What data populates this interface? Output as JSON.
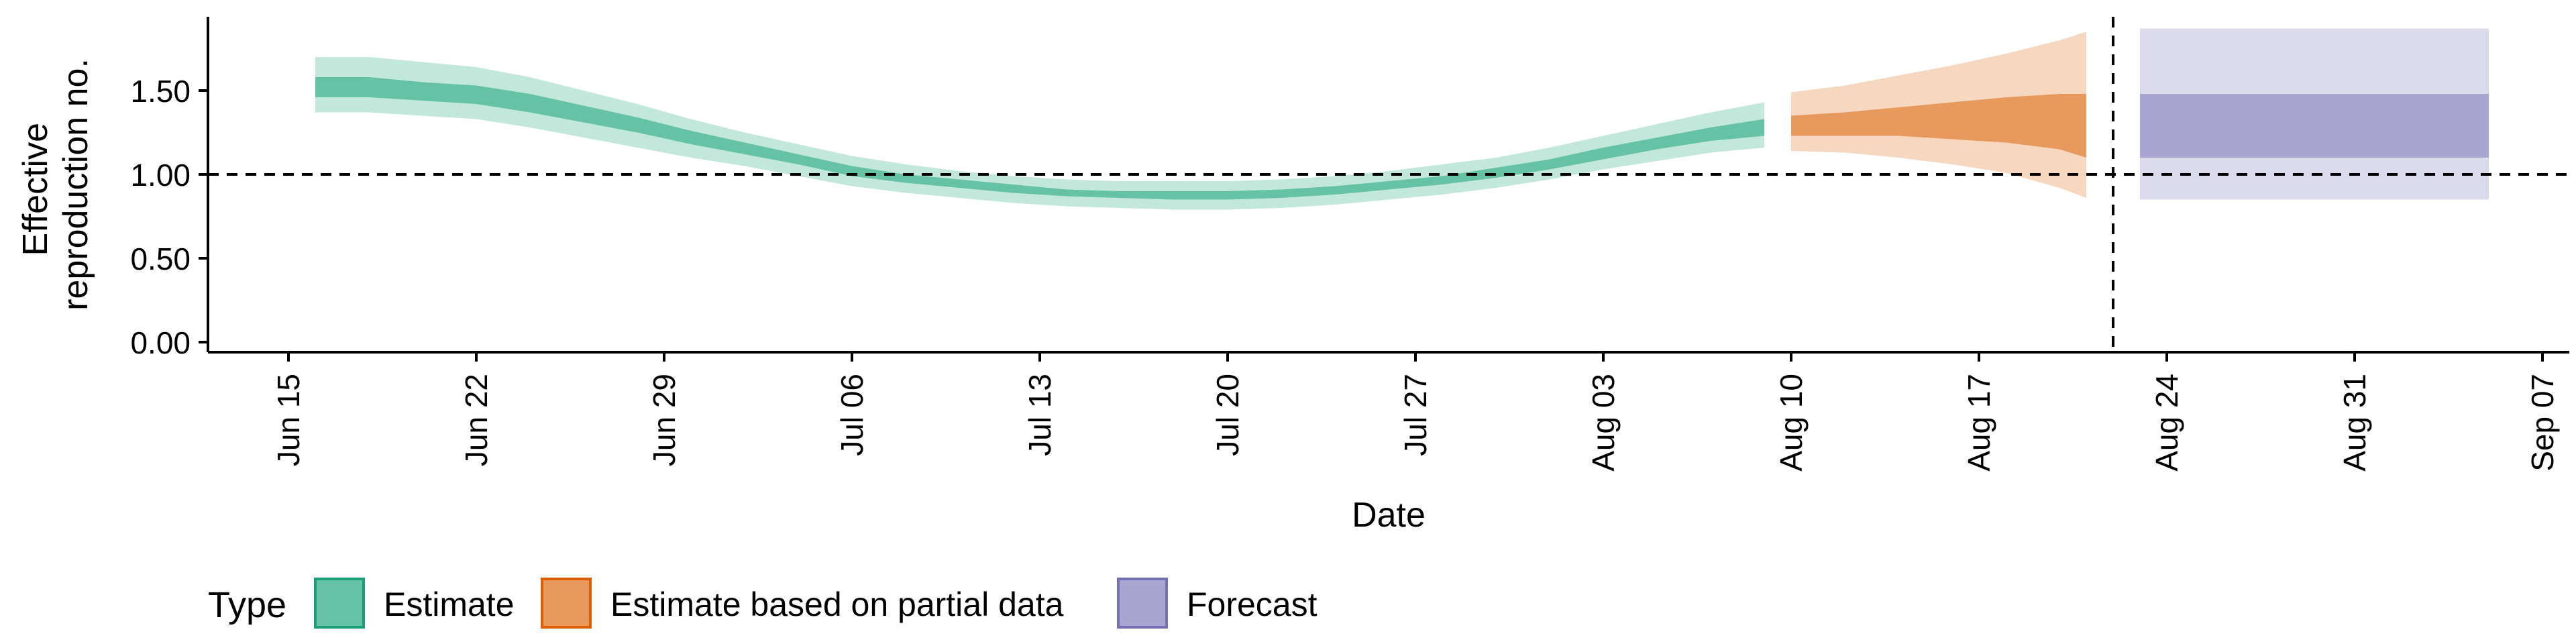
{
  "chart_data": {
    "type": "area",
    "xlabel": "Date",
    "ylabel": "Effective reproduction no.",
    "ylabel_lines": [
      "Effective",
      "reproduction no."
    ],
    "ylim": [
      -0.06,
      1.94
    ],
    "yticks": [
      0.0,
      0.5,
      1.0,
      1.5
    ],
    "ytick_labels": [
      "0.00",
      "0.50",
      "1.00",
      "1.50"
    ],
    "xlim": [
      "2020-06-12",
      "2020-09-08"
    ],
    "xticks": [
      "2020-06-15",
      "2020-06-22",
      "2020-06-29",
      "2020-07-06",
      "2020-07-13",
      "2020-07-20",
      "2020-07-27",
      "2020-08-03",
      "2020-08-10",
      "2020-08-17",
      "2020-08-24",
      "2020-08-31",
      "2020-09-07"
    ],
    "xtick_labels": [
      "Jun 15",
      "Jun 22",
      "Jun 29",
      "Jul 06",
      "Jul 13",
      "Jul 20",
      "Jul 27",
      "Aug 03",
      "Aug 10",
      "Aug 17",
      "Aug 24",
      "Aug 31",
      "Sep 07"
    ],
    "reference_line_y": 1.0,
    "vertical_line_x": "2020-08-22",
    "grid": false,
    "legend": {
      "title": "Type",
      "position": "bottom-left",
      "items": [
        {
          "label": "Estimate",
          "fill": "#66c2a5",
          "stroke": "#1b9e77"
        },
        {
          "label": "Estimate based on partial data",
          "fill": "#e89a5e",
          "stroke": "#d95f02"
        },
        {
          "label": "Forecast",
          "fill": "#a8a5d0",
          "stroke": "#7570b3"
        }
      ]
    },
    "series": [
      {
        "name": "Estimate",
        "color": "#66c2a5",
        "points": [
          {
            "x": "2020-06-16",
            "lo90": 1.37,
            "lo50": 1.46,
            "hi50": 1.58,
            "hi90": 1.7
          },
          {
            "x": "2020-06-18",
            "lo90": 1.37,
            "lo50": 1.46,
            "hi50": 1.58,
            "hi90": 1.7
          },
          {
            "x": "2020-06-20",
            "lo90": 1.35,
            "lo50": 1.44,
            "hi50": 1.55,
            "hi90": 1.67
          },
          {
            "x": "2020-06-22",
            "lo90": 1.33,
            "lo50": 1.42,
            "hi50": 1.53,
            "hi90": 1.64
          },
          {
            "x": "2020-06-24",
            "lo90": 1.28,
            "lo50": 1.37,
            "hi50": 1.48,
            "hi90": 1.58
          },
          {
            "x": "2020-06-26",
            "lo90": 1.22,
            "lo50": 1.31,
            "hi50": 1.41,
            "hi90": 1.5
          },
          {
            "x": "2020-06-28",
            "lo90": 1.16,
            "lo50": 1.25,
            "hi50": 1.34,
            "hi90": 1.42
          },
          {
            "x": "2020-06-30",
            "lo90": 1.1,
            "lo50": 1.18,
            "hi50": 1.26,
            "hi90": 1.33
          },
          {
            "x": "2020-07-02",
            "lo90": 1.05,
            "lo50": 1.12,
            "hi50": 1.19,
            "hi90": 1.25
          },
          {
            "x": "2020-07-04",
            "lo90": 0.99,
            "lo50": 1.06,
            "hi50": 1.12,
            "hi90": 1.18
          },
          {
            "x": "2020-07-06",
            "lo90": 0.93,
            "lo50": 0.99,
            "hi50": 1.05,
            "hi90": 1.11
          },
          {
            "x": "2020-07-08",
            "lo90": 0.89,
            "lo50": 0.95,
            "hi50": 1.0,
            "hi90": 1.06
          },
          {
            "x": "2020-07-10",
            "lo90": 0.86,
            "lo50": 0.92,
            "hi50": 0.97,
            "hi90": 1.02
          },
          {
            "x": "2020-07-12",
            "lo90": 0.83,
            "lo50": 0.89,
            "hi50": 0.94,
            "hi90": 0.99
          },
          {
            "x": "2020-07-14",
            "lo90": 0.81,
            "lo50": 0.87,
            "hi50": 0.91,
            "hi90": 0.97
          },
          {
            "x": "2020-07-16",
            "lo90": 0.8,
            "lo50": 0.86,
            "hi50": 0.9,
            "hi90": 0.96
          },
          {
            "x": "2020-07-18",
            "lo90": 0.79,
            "lo50": 0.85,
            "hi50": 0.9,
            "hi90": 0.96
          },
          {
            "x": "2020-07-20",
            "lo90": 0.79,
            "lo50": 0.85,
            "hi50": 0.9,
            "hi90": 0.96
          },
          {
            "x": "2020-07-22",
            "lo90": 0.8,
            "lo50": 0.86,
            "hi50": 0.91,
            "hi90": 0.97
          },
          {
            "x": "2020-07-24",
            "lo90": 0.82,
            "lo50": 0.88,
            "hi50": 0.93,
            "hi90": 0.99
          },
          {
            "x": "2020-07-26",
            "lo90": 0.85,
            "lo50": 0.91,
            "hi50": 0.96,
            "hi90": 1.02
          },
          {
            "x": "2020-07-28",
            "lo90": 0.88,
            "lo50": 0.94,
            "hi50": 0.99,
            "hi90": 1.06
          },
          {
            "x": "2020-07-30",
            "lo90": 0.92,
            "lo50": 0.98,
            "hi50": 1.04,
            "hi90": 1.1
          },
          {
            "x": "2020-08-01",
            "lo90": 0.97,
            "lo50": 1.03,
            "hi50": 1.09,
            "hi90": 1.16
          },
          {
            "x": "2020-08-03",
            "lo90": 1.03,
            "lo50": 1.09,
            "hi50": 1.16,
            "hi90": 1.23
          },
          {
            "x": "2020-08-05",
            "lo90": 1.08,
            "lo50": 1.15,
            "hi50": 1.22,
            "hi90": 1.3
          },
          {
            "x": "2020-08-07",
            "lo90": 1.13,
            "lo50": 1.2,
            "hi50": 1.28,
            "hi90": 1.37
          },
          {
            "x": "2020-08-09",
            "lo90": 1.16,
            "lo50": 1.23,
            "hi50": 1.33,
            "hi90": 1.43
          }
        ]
      },
      {
        "name": "Estimate based on partial data",
        "color": "#e89a5e",
        "points": [
          {
            "x": "2020-08-10",
            "lo90": 1.14,
            "lo50": 1.23,
            "hi50": 1.35,
            "hi90": 1.49
          },
          {
            "x": "2020-08-12",
            "lo90": 1.13,
            "lo50": 1.23,
            "hi50": 1.37,
            "hi90": 1.53
          },
          {
            "x": "2020-08-14",
            "lo90": 1.1,
            "lo50": 1.23,
            "hi50": 1.4,
            "hi90": 1.59
          },
          {
            "x": "2020-08-16",
            "lo90": 1.06,
            "lo50": 1.21,
            "hi50": 1.43,
            "hi90": 1.65
          },
          {
            "x": "2020-08-18",
            "lo90": 1.01,
            "lo50": 1.19,
            "hi50": 1.46,
            "hi90": 1.72
          },
          {
            "x": "2020-08-20",
            "lo90": 0.92,
            "lo50": 1.15,
            "hi50": 1.48,
            "hi90": 1.8
          },
          {
            "x": "2020-08-21",
            "lo90": 0.86,
            "lo50": 1.1,
            "hi50": 1.48,
            "hi90": 1.85
          }
        ]
      },
      {
        "name": "Forecast",
        "color": "#a8a5d0",
        "band": {
          "x_start": "2020-08-23",
          "x_end": "2020-09-05",
          "lo90": 0.85,
          "lo50": 1.1,
          "hi50": 1.48,
          "hi90": 1.87
        }
      }
    ]
  }
}
